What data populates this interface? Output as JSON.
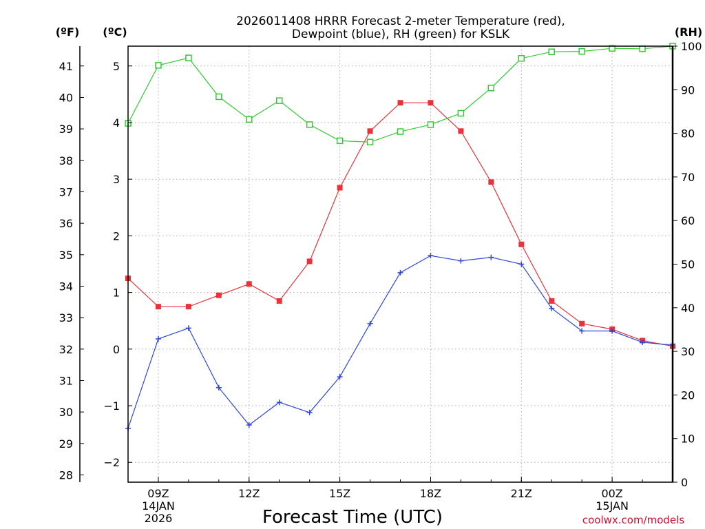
{
  "chart_data": {
    "type": "line",
    "title": [
      "2026011408 HRRR Forecast 2-meter Temperature (red),",
      "Dewpoint (blue), RH (green) for KSLK"
    ],
    "xlabel": "Forecast Time (UTC)",
    "credit": "coolwx.com/models",
    "units": {
      "fahrenheit": "(ºF)",
      "celsius": "(ºC)",
      "rh": "(RH)"
    },
    "x_hours": [
      8,
      9,
      10,
      11,
      12,
      13,
      14,
      15,
      16,
      17,
      18,
      19,
      20,
      21,
      22,
      23,
      24,
      25,
      26
    ],
    "xlim": [
      8,
      26
    ],
    "x_ticks": [
      {
        "hour": 9,
        "lines": [
          "09Z",
          "14JAN",
          "2026"
        ]
      },
      {
        "hour": 12,
        "lines": [
          "12Z"
        ]
      },
      {
        "hour": 15,
        "lines": [
          "15Z"
        ]
      },
      {
        "hour": 18,
        "lines": [
          "18Z"
        ]
      },
      {
        "hour": 21,
        "lines": [
          "21Z"
        ]
      },
      {
        "hour": 24,
        "lines": [
          "00Z",
          "15JAN"
        ]
      }
    ],
    "celsius_axis": {
      "range": [
        -2.35,
        5.35
      ],
      "ticks": [
        -2,
        -1,
        0,
        1,
        2,
        3,
        4,
        5
      ]
    },
    "fahrenheit_axis": {
      "ticks": [
        28,
        29,
        30,
        31,
        32,
        33,
        34,
        35,
        36,
        37,
        38,
        39,
        40,
        41
      ]
    },
    "rh_axis": {
      "range": [
        0,
        100
      ],
      "ticks": [
        0,
        10,
        20,
        30,
        40,
        50,
        60,
        70,
        80,
        90,
        100
      ]
    },
    "series": [
      {
        "name": "Temperature",
        "color": "#e8333a",
        "marker": "filled-square",
        "axis": "celsius",
        "values": [
          1.25,
          0.75,
          0.75,
          0.95,
          1.15,
          0.85,
          1.55,
          2.85,
          3.85,
          4.35,
          4.35,
          3.85,
          2.95,
          1.85,
          0.85,
          0.45,
          0.35,
          0.15,
          0.05
        ]
      },
      {
        "name": "Dewpoint",
        "color": "#2b45e0",
        "marker": "plus",
        "axis": "celsius",
        "values": [
          -1.4,
          0.18,
          0.37,
          -0.68,
          -1.34,
          -0.94,
          -1.12,
          -0.49,
          0.45,
          1.35,
          1.65,
          1.56,
          1.62,
          1.5,
          0.72,
          0.32,
          0.32,
          0.12,
          0.07
        ]
      },
      {
        "name": "RH",
        "color": "#2ecc2e",
        "marker": "open-square",
        "axis": "rh",
        "values": [
          82.3,
          95.6,
          97.3,
          88.4,
          83.2,
          87.5,
          82.0,
          78.3,
          78.0,
          80.4,
          82.0,
          84.6,
          90.4,
          97.2,
          98.7,
          98.8,
          99.5,
          99.4,
          100.0
        ]
      }
    ]
  }
}
